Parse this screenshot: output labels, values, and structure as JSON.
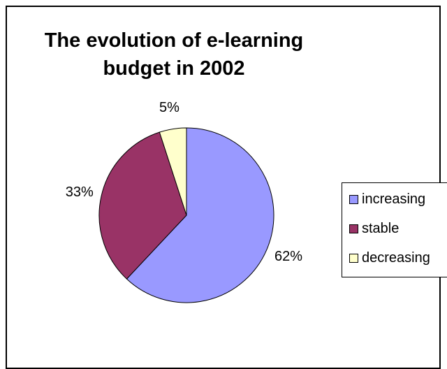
{
  "chart_data": {
    "type": "pie",
    "title": [
      "The evolution of e-learning",
      "budget in 2002"
    ],
    "categories": [
      "increasing",
      "stable",
      "decreasing"
    ],
    "values": [
      62,
      33,
      5
    ],
    "value_labels": [
      "62%",
      "33%",
      "5%"
    ],
    "colors": [
      "#9999ff",
      "#993366",
      "#ffffcc"
    ],
    "legend_position": "right",
    "start_angle": "12 o'clock",
    "direction": "clockwise"
  }
}
